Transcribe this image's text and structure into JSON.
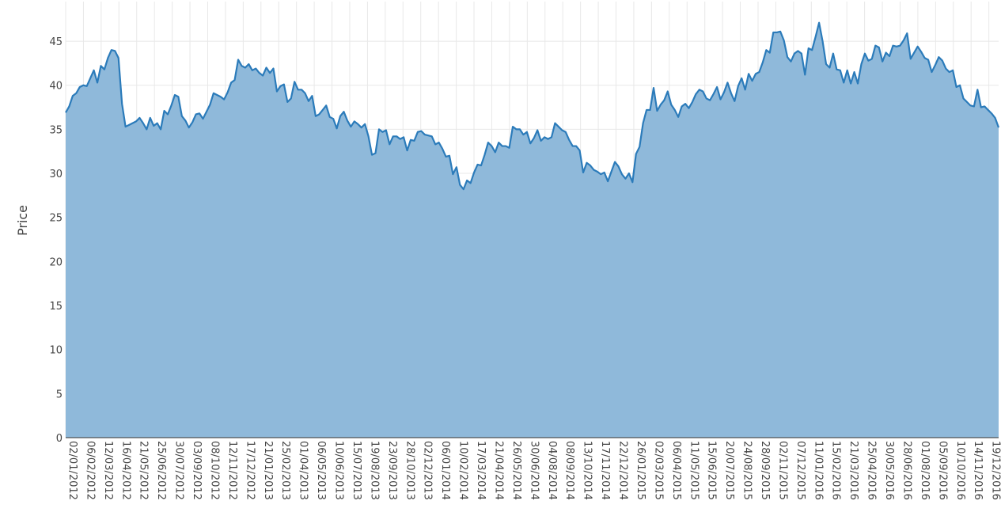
{
  "chart_data": {
    "type": "area",
    "title": "",
    "xlabel": "",
    "ylabel": "Price",
    "ylim": [
      0,
      49.5
    ],
    "x_tick_labels": [
      "02/01/2012",
      "06/02/2012",
      "12/03/2012",
      "16/04/2012",
      "21/05/2012",
      "25/06/2012",
      "30/07/2012",
      "03/09/2012",
      "08/10/2012",
      "12/11/2012",
      "17/12/2012",
      "21/01/2013",
      "25/02/2013",
      "01/04/2013",
      "06/05/2013",
      "10/06/2013",
      "15/07/2013",
      "19/08/2013",
      "23/09/2013",
      "28/10/2013",
      "02/12/2013",
      "06/01/2014",
      "10/02/2014",
      "17/03/2014",
      "21/04/2014",
      "26/05/2014",
      "30/06/2014",
      "04/08/2014",
      "08/09/2014",
      "13/10/2014",
      "17/11/2014",
      "22/12/2014",
      "26/01/2015",
      "02/03/2015",
      "06/04/2015",
      "11/05/2015",
      "15/06/2015",
      "20/07/2015",
      "24/08/2015",
      "28/09/2015",
      "02/11/2015",
      "07/12/2015",
      "11/01/2016",
      "15/02/2016",
      "21/03/2016",
      "25/04/2016",
      "30/05/2016",
      "28/06/2016",
      "01/08/2016",
      "05/09/2016",
      "10/10/2016",
      "14/11/2016",
      "19/12/2016"
    ],
    "y_ticks": [
      0,
      5,
      10,
      15,
      20,
      25,
      30,
      35,
      40,
      45
    ],
    "grid": true,
    "colors": {
      "line": "#2b7bba",
      "fill": "#8fb9da",
      "grid": "#e8e8e8",
      "text": "#444444"
    },
    "series": [
      {
        "values": [
          36.9,
          37.6,
          38.8,
          39.1,
          39.8,
          40.0,
          39.9,
          40.8,
          41.7,
          40.3,
          42.2,
          41.8,
          43.1,
          44.0,
          43.9,
          43.1,
          37.9,
          35.3,
          35.5,
          35.7,
          35.9,
          36.3,
          35.7,
          35.0,
          36.3,
          35.4,
          35.7,
          35.0,
          37.1,
          36.7,
          37.7,
          38.9,
          38.7,
          36.5,
          36.0,
          35.2,
          35.8,
          36.7,
          36.8,
          36.2,
          37.0,
          37.8,
          39.1,
          38.9,
          38.7,
          38.4,
          39.2,
          40.3,
          40.6,
          42.9,
          42.2,
          42.0,
          42.4,
          41.7,
          41.9,
          41.4,
          41.1,
          42.0,
          41.4,
          41.9,
          39.3,
          39.9,
          40.1,
          38.1,
          38.5,
          40.4,
          39.5,
          39.5,
          39.1,
          38.2,
          38.8,
          36.5,
          36.7,
          37.2,
          37.7,
          36.4,
          36.2,
          35.1,
          36.5,
          37.0,
          36.0,
          35.3,
          35.9,
          35.6,
          35.2,
          35.6,
          34.2,
          32.1,
          32.3,
          35.0,
          34.7,
          34.9,
          33.3,
          34.2,
          34.2,
          33.9,
          34.1,
          32.6,
          33.8,
          33.7,
          34.7,
          34.8,
          34.4,
          34.3,
          34.2,
          33.3,
          33.5,
          32.8,
          31.9,
          32.0,
          29.9,
          30.7,
          28.7,
          28.2,
          29.2,
          28.9,
          30.1,
          31.0,
          30.9,
          32.1,
          33.5,
          33.1,
          32.4,
          33.5,
          33.1,
          33.1,
          32.9,
          35.3,
          35.0,
          35.0,
          34.4,
          34.7,
          33.4,
          34.0,
          34.9,
          33.7,
          34.1,
          33.9,
          34.1,
          35.7,
          35.3,
          34.9,
          34.7,
          33.8,
          33.1,
          33.1,
          32.6,
          30.1,
          31.2,
          30.9,
          30.4,
          30.2,
          29.9,
          30.1,
          29.1,
          30.2,
          31.3,
          30.8,
          29.9,
          29.4,
          30.0,
          29.0,
          32.2,
          33.0,
          35.7,
          37.2,
          37.2,
          39.7,
          37.1,
          37.8,
          38.3,
          39.3,
          37.8,
          37.2,
          36.4,
          37.6,
          37.9,
          37.4,
          38.1,
          39.0,
          39.5,
          39.3,
          38.5,
          38.3,
          39.0,
          39.8,
          38.4,
          39.2,
          40.3,
          39.1,
          38.2,
          39.9,
          40.8,
          39.5,
          41.3,
          40.5,
          41.3,
          41.5,
          42.6,
          44.0,
          43.7,
          46.0,
          46.0,
          46.1,
          45.1,
          43.2,
          42.7,
          43.6,
          43.9,
          43.6,
          41.2,
          44.2,
          44.0,
          45.5,
          47.1,
          45.0,
          42.4,
          42.0,
          43.6,
          41.8,
          41.7,
          40.3,
          41.7,
          40.2,
          41.5,
          40.2,
          42.4,
          43.6,
          42.8,
          43.0,
          44.5,
          44.3,
          42.7,
          43.7,
          43.3,
          44.5,
          44.4,
          44.5,
          45.1,
          45.9,
          43.0,
          43.7,
          44.4,
          43.8,
          43.1,
          42.9,
          41.5,
          42.3,
          43.2,
          42.8,
          41.9,
          41.5,
          41.7,
          39.8,
          40.0,
          38.5,
          38.1,
          37.7,
          37.6,
          39.5,
          37.5,
          37.6,
          37.2,
          36.8,
          36.3,
          35.2
        ]
      }
    ]
  }
}
